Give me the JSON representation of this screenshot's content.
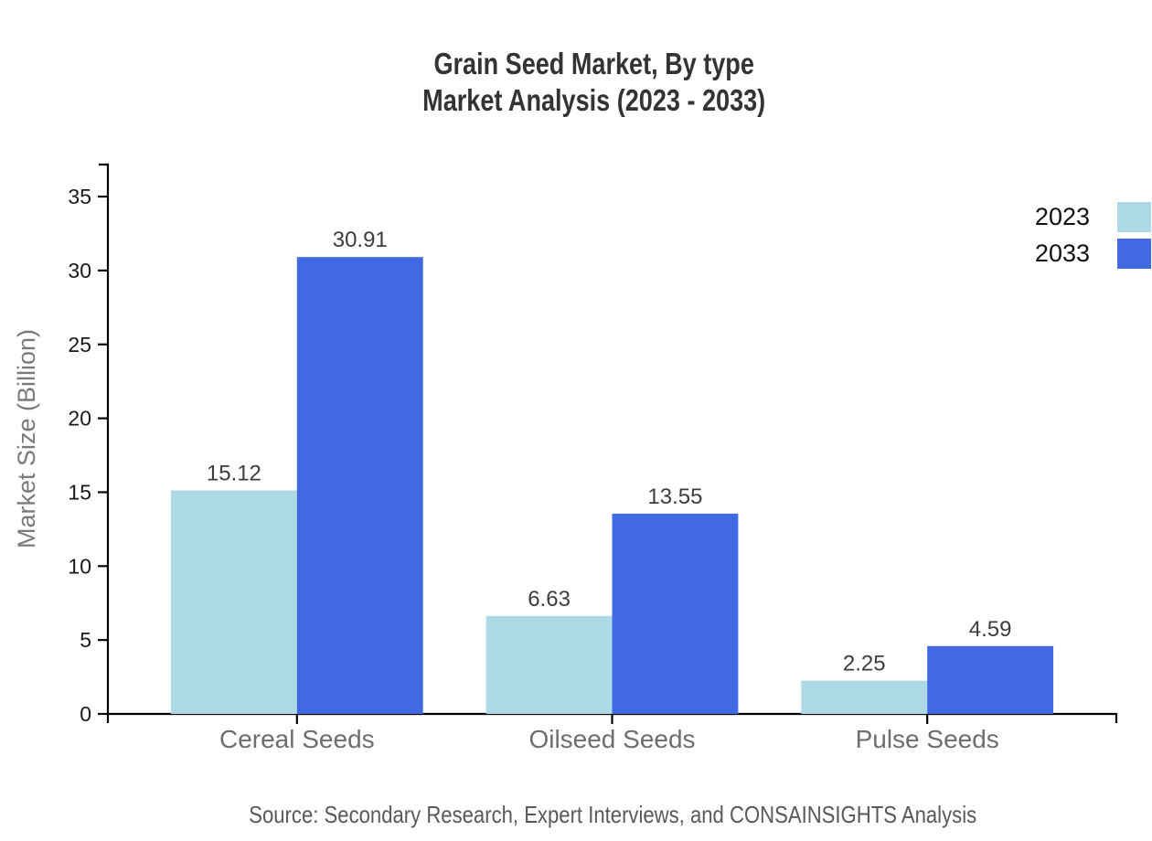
{
  "title": {
    "line1": "Grain Seed Market, By type",
    "line2": "Market Analysis (2023 - 2033)"
  },
  "source": {
    "text": "Source: Secondary Research, Expert Interviews, and CONSAINSIGHTS Analysis"
  },
  "legend": {
    "position": "top-right",
    "items": [
      {
        "label": "2023",
        "color": "#ADD8E6"
      },
      {
        "label": "2033",
        "color": "#4169E1"
      }
    ]
  },
  "colors": {
    "series_2023": "#ADD8E6",
    "series_2033": "#4169E1",
    "axis_line": "#000000",
    "title_text": "#333333",
    "tick_label_text": "#1a1a1a",
    "category_text": "#6e6e6e",
    "value_label_text": "#3d3d3d",
    "y_axis_title_text": "#7a7a7a",
    "source_text": "#595959",
    "legend_text": "#111111",
    "background": "#ffffff"
  },
  "chart_data": {
    "type": "bar",
    "title": "Grain Seed Market, By type Market Analysis (2023 - 2033)",
    "categories": [
      "Cereal Seeds",
      "Oilseed Seeds",
      "Pulse Seeds"
    ],
    "series": [
      {
        "name": "2023",
        "color": "#ADD8E6",
        "values": [
          15.12,
          6.63,
          2.25
        ]
      },
      {
        "name": "2033",
        "color": "#4169E1",
        "values": [
          30.91,
          13.55,
          4.59
        ]
      }
    ],
    "xlabel": "",
    "ylabel": "Market Size (Billion)",
    "ylim": [
      0,
      37.2
    ],
    "y_ticks": [
      0,
      5,
      10,
      15,
      20,
      25,
      30,
      35
    ],
    "value_labels": true,
    "grid": false,
    "legend_position": "top-right"
  }
}
